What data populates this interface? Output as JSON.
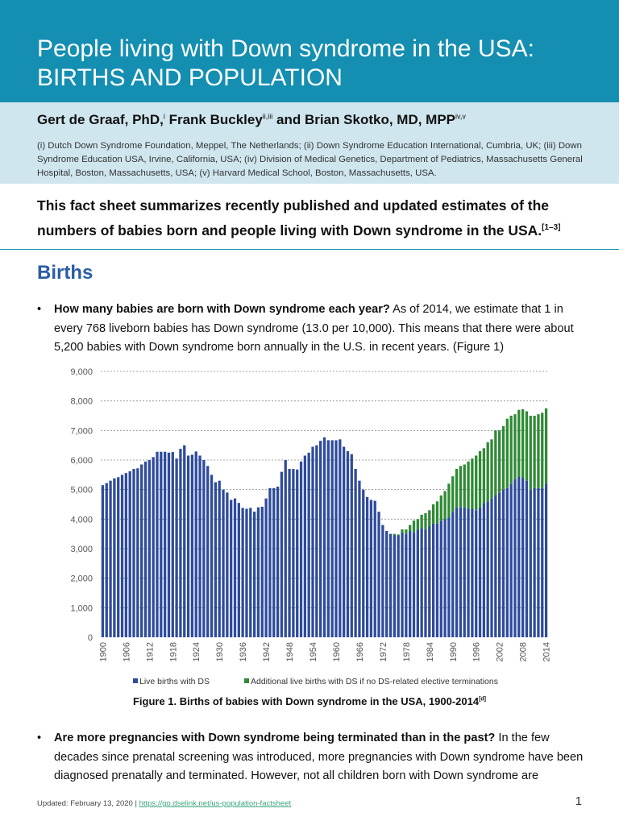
{
  "header": {
    "title_line1": "People living with Down syndrome in the USA:",
    "title_line2": "BIRTHS AND POPULATION"
  },
  "authors": {
    "a1": "Gert de Graaf, PhD,",
    "a1_sup": "i",
    "a2": "Frank Buckley",
    "a2_sup": "ii,iii",
    "a3": "and Brian Skotko, MD, MPP",
    "a3_sup": "iv,v",
    "affiliations": "(i) Dutch Down Syndrome Foundation, Meppel, The Netherlands; (ii) Down Syndrome Education International, Cumbria, UK; (iii) Down Syndrome Education USA, Irvine, California, USA; (iv) Division of Medical Genetics, Department of Pediatrics, Massachusetts General Hospital, Boston, Massachusetts, USA; (v) Harvard Medical School, Boston, Massachusetts, USA."
  },
  "summary": {
    "text": "This fact sheet summarizes recently published and updated estimates of the numbers of babies born and people living with Down syndrome in the USA.",
    "ref": "[1–3]"
  },
  "section": {
    "title": "Births"
  },
  "bullets": [
    {
      "question": "How many babies are born with Down syndrome each year?",
      "answer": " As of 2014, we estimate that 1 in every 768 liveborn babies has Down syndrome (13.0 per 10,000). This means that there were about 5,200 babies with Down syndrome born annually in the U.S. in recent years. (Figure 1)"
    },
    {
      "question": "Are more pregnancies with Down syndrome being terminated than in the past?",
      "answer": " In the few decades since prenatal screening was introduced, more pregnancies with Down syndrome have been diagnosed prenatally and terminated. However, not all children born with Down syndrome are"
    }
  ],
  "figure": {
    "caption": "Figure 1. Births of babies with Down syndrome in the USA, 1900-2014",
    "caption_ref": "[d]"
  },
  "footer": {
    "updated": "Updated: February 13, 2020 | ",
    "link": "https://go.dselink.net/us-population-factsheet",
    "page": "1"
  },
  "colors": {
    "header": "#148fb1",
    "blue_series": "#2e4b9c",
    "green_series": "#2f8a34",
    "heading": "#2a5ca6"
  },
  "chart_data": {
    "type": "bar",
    "stacked": true,
    "title": "",
    "xlabel": "",
    "ylabel": "",
    "ylim": [
      0,
      9000
    ],
    "y_ticks": [
      "0",
      "1,000",
      "2,000",
      "3,000",
      "4,000",
      "5,000",
      "6,000",
      "7,000",
      "8,000",
      "9,000"
    ],
    "grid": "horizontal dotted",
    "legend_position": "bottom",
    "x_tick_labels": [
      "1900",
      "1906",
      "1912",
      "1918",
      "1924",
      "1930",
      "1936",
      "1942",
      "1948",
      "1954",
      "1960",
      "1966",
      "1972",
      "1978",
      "1984",
      "1990",
      "1996",
      "2002",
      "2008",
      "2014"
    ],
    "categories": [
      1900,
      1901,
      1902,
      1903,
      1904,
      1905,
      1906,
      1907,
      1908,
      1909,
      1910,
      1911,
      1912,
      1913,
      1914,
      1915,
      1916,
      1917,
      1918,
      1919,
      1920,
      1921,
      1922,
      1923,
      1924,
      1925,
      1926,
      1927,
      1928,
      1929,
      1930,
      1931,
      1932,
      1933,
      1934,
      1935,
      1936,
      1937,
      1938,
      1939,
      1940,
      1941,
      1942,
      1943,
      1944,
      1945,
      1946,
      1947,
      1948,
      1949,
      1950,
      1951,
      1952,
      1953,
      1954,
      1955,
      1956,
      1957,
      1958,
      1959,
      1960,
      1961,
      1962,
      1963,
      1964,
      1965,
      1966,
      1967,
      1968,
      1969,
      1970,
      1971,
      1972,
      1973,
      1974,
      1975,
      1976,
      1977,
      1978,
      1979,
      1980,
      1981,
      1982,
      1983,
      1984,
      1985,
      1986,
      1987,
      1988,
      1989,
      1990,
      1991,
      1992,
      1993,
      1994,
      1995,
      1996,
      1997,
      1998,
      1999,
      2000,
      2001,
      2002,
      2003,
      2004,
      2005,
      2006,
      2007,
      2008,
      2009,
      2010,
      2011,
      2012,
      2013,
      2014
    ],
    "series": [
      {
        "name": "Live births with DS",
        "color": "#2e4b9c",
        "values": [
          5150,
          5220,
          5300,
          5380,
          5420,
          5500,
          5560,
          5620,
          5700,
          5720,
          5850,
          5950,
          6000,
          6100,
          6280,
          6280,
          6280,
          6250,
          6270,
          6050,
          6380,
          6500,
          6150,
          6180,
          6290,
          6150,
          6000,
          5800,
          5500,
          5250,
          5300,
          5000,
          4900,
          4650,
          4700,
          4550,
          4380,
          4350,
          4380,
          4250,
          4400,
          4420,
          4700,
          5050,
          5050,
          5100,
          5600,
          6000,
          5700,
          5700,
          5680,
          5950,
          6150,
          6250,
          6450,
          6500,
          6650,
          6770,
          6670,
          6670,
          6670,
          6700,
          6450,
          6300,
          6200,
          5700,
          5300,
          5000,
          4750,
          4650,
          4620,
          4250,
          3800,
          3600,
          3500,
          3450,
          3450,
          3550,
          3500,
          3600,
          3550,
          3650,
          3700,
          3650,
          3750,
          3850,
          3850,
          3950,
          4000,
          4050,
          4250,
          4400,
          4400,
          4400,
          4350,
          4350,
          4300,
          4400,
          4550,
          4600,
          4700,
          4800,
          4900,
          5000,
          5050,
          5200,
          5350,
          5450,
          5400,
          5300,
          5000,
          5050,
          5050,
          5050,
          5200
        ]
      },
      {
        "name": "Additional live births with DS if no DS-related elective terminations",
        "color": "#2f8a34",
        "values": [
          0,
          0,
          0,
          0,
          0,
          0,
          0,
          0,
          0,
          0,
          0,
          0,
          0,
          0,
          0,
          0,
          0,
          0,
          0,
          0,
          0,
          0,
          0,
          0,
          0,
          0,
          0,
          0,
          0,
          0,
          0,
          0,
          0,
          0,
          0,
          0,
          0,
          0,
          0,
          0,
          0,
          0,
          0,
          0,
          0,
          0,
          0,
          0,
          0,
          0,
          0,
          0,
          0,
          0,
          0,
          0,
          0,
          0,
          0,
          0,
          0,
          0,
          0,
          0,
          0,
          0,
          0,
          0,
          0,
          0,
          0,
          0,
          0,
          0,
          0,
          50,
          30,
          100,
          150,
          200,
          400,
          350,
          450,
          550,
          550,
          650,
          750,
          850,
          950,
          1150,
          1200,
          1300,
          1400,
          1450,
          1600,
          1700,
          1850,
          1900,
          1850,
          2000,
          2000,
          2200,
          2100,
          2150,
          2350,
          2300,
          2200,
          2250,
          2320,
          2350,
          2500,
          2450,
          2500,
          2550,
          2550
        ]
      }
    ]
  }
}
